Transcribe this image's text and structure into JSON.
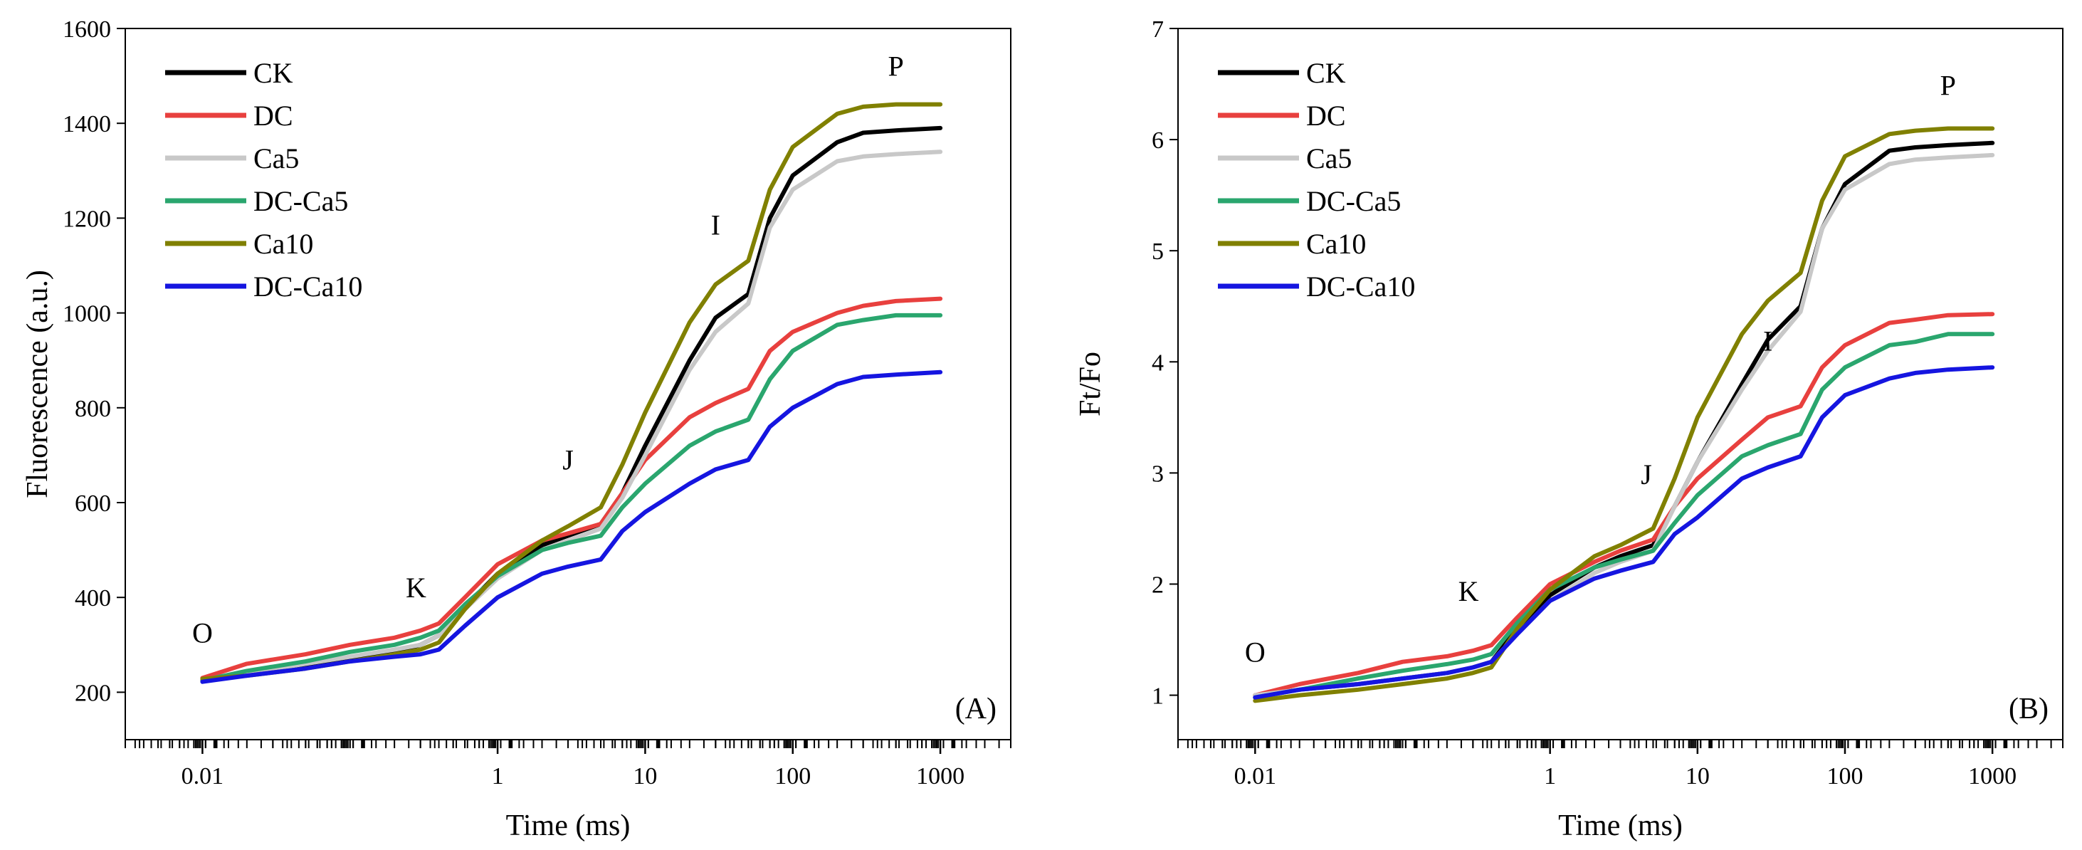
{
  "chart_data": [
    {
      "type": "line",
      "panel_label": "(A)",
      "xlabel": "Time (ms)",
      "ylabel": "Fluorescence (a.u.)",
      "x_scale": "log",
      "xlim": [
        0.003,
        3000
      ],
      "ylim": [
        100,
        1600
      ],
      "x_ticks": [
        0.01,
        1,
        10,
        100,
        1000
      ],
      "x_tick_labels": [
        "0.01",
        "1",
        "10",
        "100",
        "1000"
      ],
      "y_ticks": [
        200,
        400,
        600,
        800,
        1000,
        1200,
        1400,
        1600
      ],
      "y_tick_labels": [
        "200",
        "400",
        "600",
        "800",
        "1000",
        "1200",
        "1400",
        "1600"
      ],
      "legend_position": "top-left",
      "phase_labels": [
        {
          "text": "O",
          "x": 0.01,
          "y": 305
        },
        {
          "text": "K",
          "x": 0.28,
          "y": 400
        },
        {
          "text": "J",
          "x": 3,
          "y": 670
        },
        {
          "text": "I",
          "x": 30,
          "y": 1165
        },
        {
          "text": "P",
          "x": 500,
          "y": 1500
        }
      ],
      "series": [
        {
          "name": "CK",
          "color": "#000000",
          "x": [
            0.01,
            0.02,
            0.05,
            0.1,
            0.2,
            0.3,
            0.4,
            0.6,
            1,
            2,
            3,
            5,
            7,
            10,
            20,
            30,
            50,
            70,
            100,
            200,
            300,
            500,
            1000
          ],
          "y": [
            225,
            240,
            255,
            270,
            285,
            300,
            320,
            380,
            450,
            510,
            530,
            555,
            620,
            720,
            900,
            990,
            1040,
            1200,
            1290,
            1360,
            1380,
            1385,
            1390
          ]
        },
        {
          "name": "DC",
          "color": "#e8403e",
          "x": [
            0.01,
            0.02,
            0.05,
            0.1,
            0.2,
            0.3,
            0.4,
            0.6,
            1,
            2,
            3,
            5,
            7,
            10,
            20,
            30,
            50,
            70,
            100,
            200,
            300,
            500,
            1000
          ],
          "y": [
            230,
            260,
            280,
            300,
            315,
            330,
            345,
            400,
            470,
            520,
            535,
            555,
            620,
            690,
            780,
            810,
            840,
            920,
            960,
            1000,
            1015,
            1025,
            1030
          ]
        },
        {
          "name": "Ca5",
          "color": "#c8c8c8",
          "x": [
            0.01,
            0.02,
            0.05,
            0.1,
            0.2,
            0.3,
            0.4,
            0.6,
            1,
            2,
            3,
            5,
            7,
            10,
            20,
            30,
            50,
            70,
            100,
            200,
            300,
            500,
            1000
          ],
          "y": [
            225,
            240,
            260,
            275,
            290,
            300,
            320,
            375,
            440,
            500,
            520,
            545,
            610,
            700,
            880,
            960,
            1020,
            1180,
            1260,
            1320,
            1330,
            1335,
            1340
          ]
        },
        {
          "name": "DC-Ca5",
          "color": "#2aa66e",
          "x": [
            0.01,
            0.02,
            0.05,
            0.1,
            0.2,
            0.3,
            0.4,
            0.6,
            1,
            2,
            3,
            5,
            7,
            10,
            20,
            30,
            50,
            70,
            100,
            200,
            300,
            500,
            1000
          ],
          "y": [
            225,
            245,
            265,
            285,
            300,
            315,
            330,
            385,
            445,
            500,
            515,
            530,
            590,
            640,
            720,
            750,
            775,
            860,
            920,
            975,
            985,
            995,
            995
          ]
        },
        {
          "name": "Ca10",
          "color": "#808000",
          "x": [
            0.01,
            0.02,
            0.05,
            0.1,
            0.2,
            0.3,
            0.4,
            0.6,
            1,
            2,
            3,
            5,
            7,
            10,
            20,
            30,
            50,
            70,
            100,
            200,
            300,
            500,
            1000
          ],
          "y": [
            228,
            235,
            250,
            265,
            280,
            290,
            305,
            375,
            450,
            520,
            550,
            590,
            680,
            790,
            980,
            1060,
            1110,
            1260,
            1350,
            1420,
            1435,
            1440,
            1440
          ]
        },
        {
          "name": "DC-Ca10",
          "color": "#1515e0",
          "x": [
            0.01,
            0.02,
            0.05,
            0.1,
            0.2,
            0.3,
            0.4,
            0.6,
            1,
            2,
            3,
            5,
            7,
            10,
            20,
            30,
            50,
            70,
            100,
            200,
            300,
            500,
            1000
          ],
          "y": [
            222,
            235,
            250,
            265,
            275,
            280,
            290,
            340,
            400,
            450,
            465,
            480,
            540,
            580,
            640,
            670,
            690,
            760,
            800,
            850,
            865,
            870,
            875
          ]
        }
      ]
    },
    {
      "type": "line",
      "panel_label": "(B)",
      "xlabel": "Time (ms)",
      "ylabel": "Ft/Fo",
      "x_scale": "log",
      "xlim": [
        0.003,
        3000
      ],
      "ylim": [
        0.6,
        7
      ],
      "x_ticks": [
        0.01,
        1,
        10,
        100,
        1000
      ],
      "x_tick_labels": [
        "0.01",
        "1",
        "10",
        "100",
        "1000"
      ],
      "y_ticks": [
        1,
        2,
        3,
        4,
        5,
        6,
        7
      ],
      "y_tick_labels": [
        "1",
        "2",
        "3",
        "4",
        "5",
        "6",
        "7"
      ],
      "legend_position": "top-left",
      "phase_labels": [
        {
          "text": "O",
          "x": 0.01,
          "y": 1.3
        },
        {
          "text": "K",
          "x": 0.28,
          "y": 1.85
        },
        {
          "text": "J",
          "x": 4.5,
          "y": 2.9
        },
        {
          "text": "I",
          "x": 30,
          "y": 4.1
        },
        {
          "text": "P",
          "x": 500,
          "y": 6.4
        }
      ],
      "series": [
        {
          "name": "CK",
          "color": "#000000",
          "x": [
            0.01,
            0.02,
            0.05,
            0.1,
            0.2,
            0.3,
            0.4,
            0.6,
            1,
            2,
            3,
            5,
            7,
            10,
            20,
            30,
            50,
            70,
            100,
            200,
            300,
            500,
            1000
          ],
          "y": [
            1.0,
            1.05,
            1.1,
            1.15,
            1.2,
            1.25,
            1.3,
            1.6,
            1.9,
            2.15,
            2.25,
            2.35,
            2.7,
            3.1,
            3.8,
            4.2,
            4.5,
            5.2,
            5.6,
            5.9,
            5.93,
            5.95,
            5.97
          ]
        },
        {
          "name": "DC",
          "color": "#e8403e",
          "x": [
            0.01,
            0.02,
            0.05,
            0.1,
            0.2,
            0.3,
            0.4,
            0.6,
            1,
            2,
            3,
            5,
            7,
            10,
            20,
            30,
            50,
            70,
            100,
            200,
            300,
            500,
            1000
          ],
          "y": [
            1.0,
            1.1,
            1.2,
            1.3,
            1.35,
            1.4,
            1.45,
            1.7,
            2.0,
            2.2,
            2.3,
            2.4,
            2.7,
            2.95,
            3.3,
            3.5,
            3.6,
            3.95,
            4.15,
            4.35,
            4.38,
            4.42,
            4.43
          ]
        },
        {
          "name": "Ca5",
          "color": "#c8c8c8",
          "x": [
            0.01,
            0.02,
            0.05,
            0.1,
            0.2,
            0.3,
            0.4,
            0.6,
            1,
            2,
            3,
            5,
            7,
            10,
            20,
            30,
            50,
            70,
            100,
            200,
            300,
            500,
            1000
          ],
          "y": [
            1.0,
            1.05,
            1.1,
            1.15,
            1.2,
            1.25,
            1.3,
            1.55,
            1.85,
            2.1,
            2.2,
            2.3,
            2.7,
            3.1,
            3.75,
            4.1,
            4.45,
            5.2,
            5.55,
            5.78,
            5.82,
            5.84,
            5.86
          ]
        },
        {
          "name": "DC-Ca5",
          "color": "#2aa66e",
          "x": [
            0.01,
            0.02,
            0.05,
            0.1,
            0.2,
            0.3,
            0.4,
            0.6,
            1,
            2,
            3,
            5,
            7,
            10,
            20,
            30,
            50,
            70,
            100,
            200,
            300,
            500,
            1000
          ],
          "y": [
            0.98,
            1.05,
            1.15,
            1.22,
            1.28,
            1.32,
            1.37,
            1.65,
            1.95,
            2.15,
            2.22,
            2.3,
            2.55,
            2.8,
            3.15,
            3.25,
            3.35,
            3.75,
            3.95,
            4.15,
            4.18,
            4.25,
            4.25
          ]
        },
        {
          "name": "Ca10",
          "color": "#808000",
          "x": [
            0.01,
            0.02,
            0.05,
            0.1,
            0.2,
            0.3,
            0.4,
            0.6,
            1,
            2,
            3,
            5,
            7,
            10,
            20,
            30,
            50,
            70,
            100,
            200,
            300,
            500,
            1000
          ],
          "y": [
            0.95,
            1.0,
            1.05,
            1.1,
            1.15,
            1.2,
            1.25,
            1.6,
            1.95,
            2.25,
            2.35,
            2.5,
            2.95,
            3.5,
            4.25,
            4.55,
            4.8,
            5.45,
            5.85,
            6.05,
            6.08,
            6.1,
            6.1
          ]
        },
        {
          "name": "DC-Ca10",
          "color": "#1515e0",
          "x": [
            0.01,
            0.02,
            0.05,
            0.1,
            0.2,
            0.3,
            0.4,
            0.6,
            1,
            2,
            3,
            5,
            7,
            10,
            20,
            30,
            50,
            70,
            100,
            200,
            300,
            500,
            1000
          ],
          "y": [
            0.98,
            1.05,
            1.1,
            1.15,
            1.2,
            1.25,
            1.3,
            1.55,
            1.85,
            2.05,
            2.12,
            2.2,
            2.45,
            2.6,
            2.95,
            3.05,
            3.15,
            3.5,
            3.7,
            3.85,
            3.9,
            3.93,
            3.95
          ]
        }
      ]
    }
  ]
}
